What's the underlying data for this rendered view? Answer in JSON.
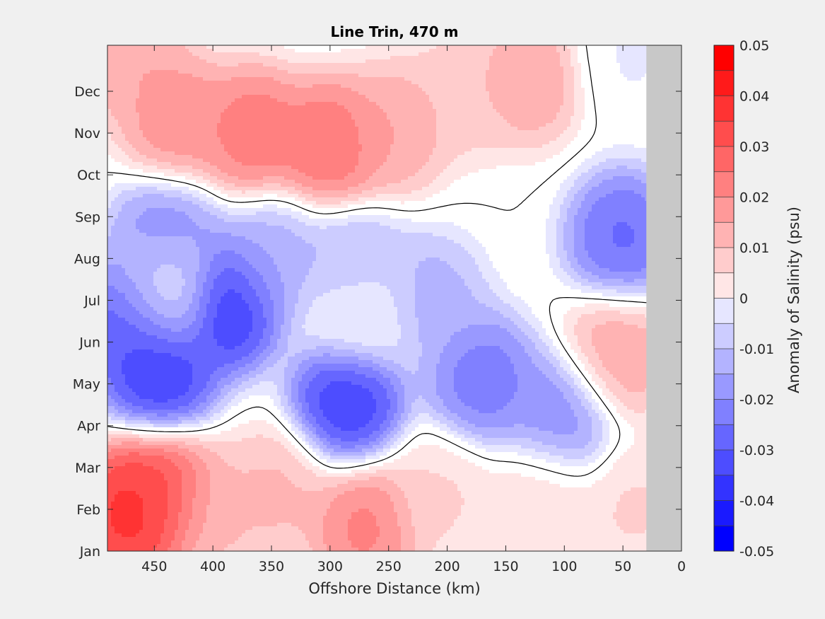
{
  "chart_data": {
    "type": "heatmap",
    "title": "Line Trin, 470 m",
    "xlabel": "Offshore Distance (km)",
    "ylabel": "",
    "x_axis": {
      "range": [
        490,
        0
      ],
      "reversed": true,
      "ticks": [
        450,
        400,
        350,
        300,
        250,
        200,
        150,
        100,
        50,
        0
      ]
    },
    "y_axis": {
      "ticks": [
        "Jan",
        "Feb",
        "Mar",
        "Apr",
        "May",
        "Jun",
        "Jul",
        "Aug",
        "Sep",
        "Oct",
        "Nov",
        "Dec"
      ]
    },
    "colorbar": {
      "label": "Anomaly of Salinity (psu)",
      "range": [
        -0.05,
        0.05
      ],
      "ticks": [
        "-0.05",
        "-0.04",
        "-0.03",
        "-0.02",
        "-0.01",
        "0",
        "0.01",
        "0.02",
        "0.03",
        "0.04",
        "0.05"
      ],
      "levels": [
        -0.05,
        -0.045,
        -0.04,
        -0.035,
        -0.03,
        -0.025,
        -0.02,
        -0.015,
        -0.01,
        -0.005,
        0,
        0.005,
        0.01,
        0.015,
        0.02,
        0.025,
        0.03,
        0.035,
        0.04,
        0.045,
        0.05
      ],
      "bands": [
        "#0000ff",
        "#1a1aff",
        "#3333ff",
        "#4d4dff",
        "#6666ff",
        "#8080ff",
        "#9999ff",
        "#b3b3ff",
        "#ccccff",
        "#e6e6ff",
        "#ffffff",
        "#ffffff",
        "#ffe6e6",
        "#ffcccc",
        "#ffb3b3",
        "#ff9999",
        "#ff8080",
        "#ff6666",
        "#ff4d4d",
        "#ff3333",
        "#ff1a1a",
        "#ff0000"
      ]
    },
    "no_data_color": "#c8c8c8",
    "no_data_x_range": [
      30,
      0
    ],
    "zero_contour": true,
    "features": [
      {
        "x": 470,
        "month": 1.9,
        "value": 0.048
      },
      {
        "x": 445,
        "month": 2.4,
        "value": 0.04
      },
      {
        "x": 400,
        "month": 1.9,
        "value": 0.018
      },
      {
        "x": 345,
        "month": 2.4,
        "value": 0.018
      },
      {
        "x": 270,
        "month": 1.6,
        "value": 0.03
      },
      {
        "x": 205,
        "month": 2.3,
        "value": 0.012
      },
      {
        "x": 120,
        "month": 2.2,
        "value": 0.012
      },
      {
        "x": 40,
        "month": 2.0,
        "value": 0.012
      },
      {
        "x": 470,
        "month": 6.6,
        "value": -0.04
      },
      {
        "x": 445,
        "month": 5.3,
        "value": -0.046
      },
      {
        "x": 440,
        "month": 8.4,
        "value": -0.03
      },
      {
        "x": 388,
        "month": 6.9,
        "value": -0.048
      },
      {
        "x": 350,
        "month": 8.0,
        "value": -0.02
      },
      {
        "x": 285,
        "month": 4.6,
        "value": -0.045
      },
      {
        "x": 280,
        "month": 7.7,
        "value": -0.022
      },
      {
        "x": 215,
        "month": 7.0,
        "value": -0.02
      },
      {
        "x": 170,
        "month": 5.1,
        "value": -0.032
      },
      {
        "x": 105,
        "month": 4.2,
        "value": -0.028
      },
      {
        "x": 50,
        "month": 8.5,
        "value": -0.035
      },
      {
        "x": 440,
        "month": 7.3,
        "value": 0.004
      },
      {
        "x": 275,
        "month": 6.8,
        "value": 0.003
      },
      {
        "x": 55,
        "month": 5.7,
        "value": 0.022
      },
      {
        "x": 470,
        "month": 12.8,
        "value": 0.022
      },
      {
        "x": 430,
        "month": 11.3,
        "value": 0.027
      },
      {
        "x": 365,
        "month": 11.0,
        "value": 0.032
      },
      {
        "x": 300,
        "month": 10.7,
        "value": 0.034
      },
      {
        "x": 245,
        "month": 11.1,
        "value": 0.022
      },
      {
        "x": 185,
        "month": 12.0,
        "value": 0.015
      },
      {
        "x": 130,
        "month": 12.3,
        "value": 0.022
      },
      {
        "x": 45,
        "month": 12.8,
        "value": -0.006
      }
    ]
  }
}
